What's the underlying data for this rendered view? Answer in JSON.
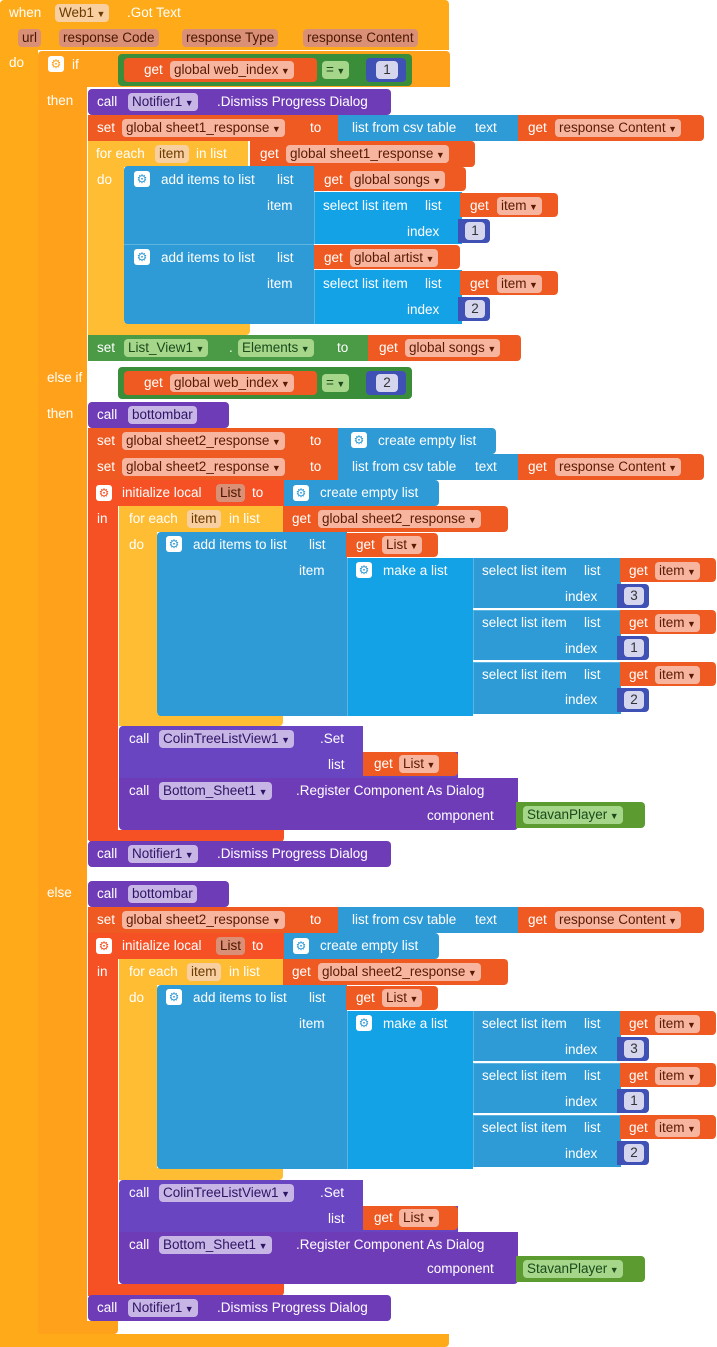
{
  "colors": {
    "event": "#ffab19",
    "control": "#ffa11a",
    "variable": "#ef5a22",
    "procedure": "#6f3cb7",
    "list": "#2f9bd6",
    "component": "#3a8e3a",
    "math": "#3f51b5"
  },
  "event": {
    "when": "when",
    "component": "Web1",
    "event": ".Got Text",
    "params": [
      "url",
      "response Code",
      "response Type",
      "response Content"
    ],
    "do": "do"
  },
  "kw": {
    "if": "if",
    "then": "then",
    "else_if": "else if",
    "else": "else",
    "call": "call",
    "set": "set",
    "to": "to",
    "get": "get",
    "for_each": "for each",
    "in_list": "in list",
    "do": "do",
    "in": "in",
    "list": "list",
    "item": "item",
    "index": "index",
    "component": "component",
    "dot": "."
  },
  "ops": {
    "eq": "="
  },
  "lists": {
    "from_csv": "list from csv table",
    "text": "text",
    "add_items": "add items to list",
    "select_item": "select list item",
    "create_empty": "create empty list",
    "make_a_list": "make a list",
    "init_local": "initialize local"
  },
  "vars": {
    "web_index": "global web_index",
    "sheet1_response": "global sheet1_response",
    "sheet2_response": "global sheet2_response",
    "response_content": "response Content",
    "songs": "global songs",
    "artist": "global artist",
    "item": "item",
    "List": "List"
  },
  "components": {
    "notifier": "Notifier1",
    "dismiss": ".Dismiss Progress Dialog",
    "list_view": "List_View1",
    "elements": "Elements",
    "bottombar": "bottombar",
    "colin": "ColinTreeListView1",
    "set_method": ".Set",
    "bottom_sheet": "Bottom_Sheet1",
    "register": ".Register Component As Dialog",
    "stavan": "StavanPlayer"
  },
  "numbers": {
    "n1": "1",
    "n2": "2",
    "n3": "3"
  }
}
